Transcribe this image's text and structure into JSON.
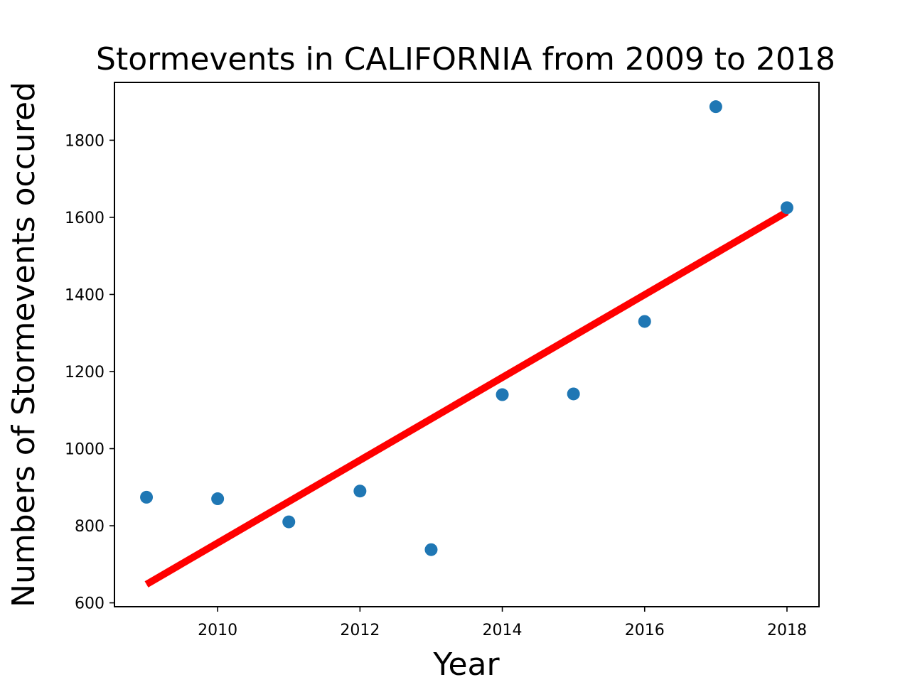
{
  "chart_data": {
    "type": "scatter",
    "title": "Stormevents in CALIFORNIA from 2009 to 2018",
    "xlabel": "Year",
    "ylabel": "Numbers of Stormevents occured",
    "xlim": [
      2008.55,
      2018.45
    ],
    "ylim": [
      590,
      1950
    ],
    "xticks": [
      2010,
      2012,
      2014,
      2016,
      2018
    ],
    "yticks": [
      600,
      800,
      1000,
      1200,
      1400,
      1600,
      1800
    ],
    "grid": false,
    "legend": "none",
    "series": [
      {
        "type": "scatter",
        "color": "#1f77b4",
        "x": [
          2009,
          2010,
          2011,
          2012,
          2013,
          2014,
          2015,
          2016,
          2017,
          2018
        ],
        "y": [
          874,
          870,
          810,
          890,
          738,
          1140,
          1142,
          1330,
          1887,
          1625
        ]
      },
      {
        "type": "line",
        "color": "#ff0000",
        "x": [
          2009,
          2018
        ],
        "y": [
          648,
          1614
        ]
      }
    ]
  }
}
